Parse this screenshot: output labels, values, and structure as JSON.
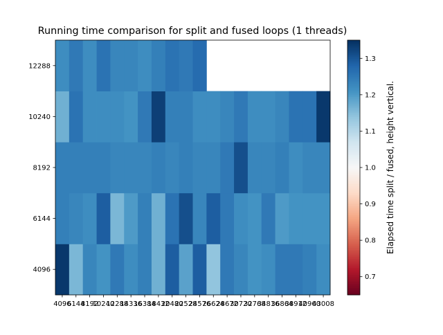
{
  "chart_data": {
    "type": "heatmap",
    "title": "Running time comparison for split and fused loops (1 threads)",
    "xlabel": "",
    "ylabel": "",
    "x_tick_labels": [
      "4096",
      "6144",
      "8192",
      "10240",
      "12288",
      "14336",
      "16384",
      "18432",
      "20480",
      "22528",
      "24576",
      "26624",
      "28672",
      "30720",
      "32768",
      "34816",
      "36864",
      "38912",
      "40960",
      "43008"
    ],
    "y_tick_labels": [
      "4096",
      "6144",
      "8192",
      "10240",
      "12288"
    ],
    "colorbar": {
      "label": "Elapsed time split / fused, height vertical.",
      "min": 0.65,
      "max": 1.35,
      "ticks": [
        "0.7",
        "0.8",
        "0.9",
        "1.0",
        "1.1",
        "1.2",
        "1.3"
      ],
      "colormap": "RdBu",
      "colors": [
        "#67001f",
        "#b2182b",
        "#d6604d",
        "#f4a582",
        "#fddbc7",
        "#f7f7f7",
        "#d1e5f0",
        "#92c5de",
        "#4393c3",
        "#2166ac",
        "#053061"
      ]
    },
    "rows_bottom_to_top": [
      {
        "y": "4096",
        "values": [
          1.34,
          1.16,
          1.23,
          1.21,
          1.25,
          1.22,
          1.24,
          1.17,
          1.29,
          1.19,
          1.29,
          1.14,
          1.25,
          1.23,
          1.21,
          1.22,
          1.25,
          1.25,
          1.24,
          1.22
        ]
      },
      {
        "y": "6144",
        "values": [
          1.24,
          1.23,
          1.22,
          1.29,
          1.16,
          1.2,
          1.24,
          1.17,
          1.26,
          1.31,
          1.23,
          1.29,
          1.25,
          1.22,
          1.21,
          1.25,
          1.2,
          1.21,
          1.21,
          1.21
        ]
      },
      {
        "y": "8192",
        "values": [
          1.24,
          1.24,
          1.24,
          1.24,
          1.23,
          1.23,
          1.23,
          1.24,
          1.23,
          1.24,
          1.23,
          1.23,
          1.25,
          1.31,
          1.23,
          1.23,
          1.24,
          1.22,
          1.23,
          1.23
        ]
      },
      {
        "y": "10240",
        "values": [
          1.17,
          1.26,
          1.22,
          1.22,
          1.22,
          1.21,
          1.25,
          1.33,
          1.24,
          1.24,
          1.22,
          1.22,
          1.23,
          1.25,
          1.22,
          1.22,
          1.23,
          1.26,
          1.26,
          1.34
        ]
      },
      {
        "y": "12288",
        "values": [
          1.22,
          1.25,
          1.22,
          1.26,
          1.23,
          1.23,
          1.22,
          1.24,
          1.26,
          1.25,
          1.27,
          null,
          null,
          null,
          null,
          null,
          null,
          null,
          null,
          null
        ]
      }
    ]
  }
}
